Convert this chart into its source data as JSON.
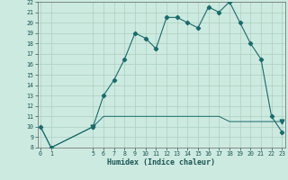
{
  "x": [
    0,
    1,
    5,
    6,
    7,
    8,
    9,
    10,
    11,
    12,
    13,
    14,
    15,
    16,
    17,
    18,
    19,
    20,
    21,
    22,
    23
  ],
  "y_main": [
    10,
    8,
    10,
    13,
    14.5,
    16.5,
    19,
    18.5,
    17.5,
    20.5,
    20.5,
    20,
    19.5,
    21.5,
    21,
    22,
    20,
    18,
    16.5,
    11,
    9.5
  ],
  "y_flat": [
    10,
    8,
    10,
    11,
    11,
    11,
    11,
    11,
    11,
    11,
    11,
    11,
    11,
    11,
    11,
    10.5,
    10.5,
    10.5,
    10.5,
    10.5,
    10.5
  ],
  "xlabel": "Humidex (Indice chaleur)",
  "ylim": [
    8,
    22
  ],
  "xlim": [
    -0.3,
    23.3
  ],
  "yticks": [
    8,
    9,
    10,
    11,
    12,
    13,
    14,
    15,
    16,
    17,
    18,
    19,
    20,
    21,
    22
  ],
  "xticks": [
    0,
    1,
    5,
    6,
    7,
    8,
    9,
    10,
    11,
    12,
    13,
    14,
    15,
    16,
    17,
    18,
    19,
    20,
    21,
    22,
    23
  ],
  "line_color": "#1a6b6b",
  "bg_color": "#cdeae0",
  "grid_color": "#aacfbf"
}
